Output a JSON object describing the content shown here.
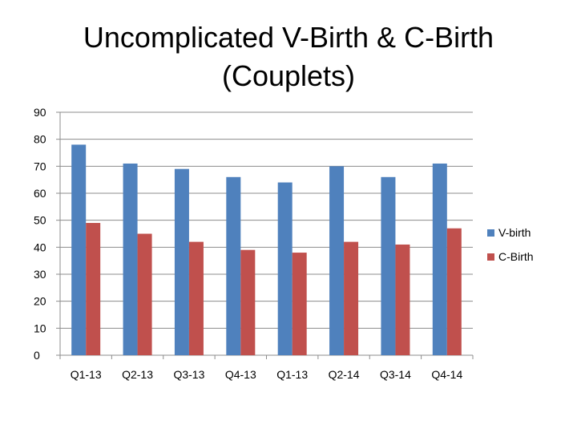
{
  "chart_data": {
    "type": "bar",
    "title_line1": "Uncomplicated V-Birth & C-Birth",
    "title_line2": "(Couplets)",
    "categories": [
      "Q1-13",
      "Q2-13",
      "Q3-13",
      "Q4-13",
      "Q1-13",
      "Q2-14",
      "Q3-14",
      "Q4-14"
    ],
    "series": [
      {
        "name": "V-birth",
        "color": "#4f81bd",
        "values": [
          78,
          71,
          69,
          66,
          64,
          70,
          66,
          71
        ]
      },
      {
        "name": "C-Birth",
        "color": "#c0504d",
        "values": [
          49,
          45,
          42,
          39,
          38,
          42,
          41,
          47
        ]
      }
    ],
    "ylim": [
      0,
      90
    ],
    "yticks": [
      "0",
      "10",
      "20",
      "30",
      "40",
      "50",
      "60",
      "70",
      "80",
      "90"
    ],
    "grid": true,
    "legend_position": "right"
  }
}
